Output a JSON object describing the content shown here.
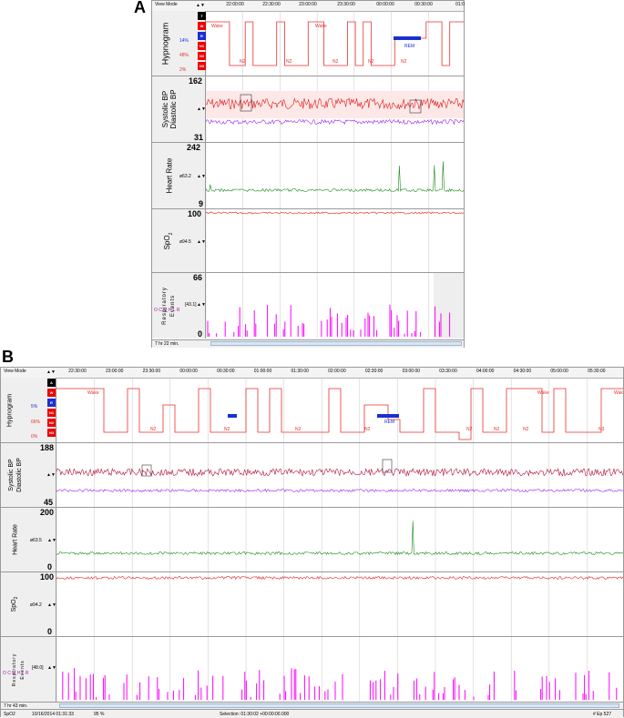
{
  "figure": {
    "label_a": "A",
    "label_b": "B"
  },
  "colors": {
    "hypno": "#e83030",
    "rem": "#1a2fd0",
    "systolic": "#e01818",
    "systolic_b": "#b0103a",
    "diastolic": "#a020f0",
    "hr": "#1a8a1a",
    "spo2": "#e82020",
    "resp": "#ff00ff",
    "grid": "#9a9a9a"
  },
  "panel_a": {
    "view_mode": "View Mode",
    "arrows": "▲▼",
    "times": [
      "22:00:00",
      "22:30:00",
      "23:00:00",
      "23:30:00",
      "00:00:00",
      "00:30:00",
      "01:0"
    ],
    "hypnogram": {
      "title": "Hypnogram",
      "stages": [
        "T",
        "W",
        "R",
        "N1",
        "N2",
        "N3"
      ],
      "pct": [
        "14%",
        "48%",
        "2%"
      ],
      "labels": [
        "Wake",
        "N2",
        "N2",
        "N2",
        "N2",
        "N2",
        "REM",
        "Wake"
      ]
    },
    "bp": {
      "title1": "Systolic BP",
      "title2": "Diastolic BP",
      "max": "162",
      "min": "31",
      "arrows": "▲▼"
    },
    "hr": {
      "title": "Heart Rate",
      "max": "242",
      "min": "9",
      "avg": "ø63.2",
      "arrows": "▲▼"
    },
    "spo2": {
      "title": "SpO",
      "sub": "2",
      "max": "100",
      "avg": "ø94.5",
      "arrows": "▲▼"
    },
    "resp": {
      "title1": "Respiratory",
      "title2": "Events",
      "max": "66",
      "min": "0",
      "legend": "O C M H L R",
      "avg": "[43.1]",
      "arrows": "▲▼"
    },
    "footer": {
      "duration": "7 hr  22 min."
    }
  },
  "panel_b": {
    "view_mode": "View Mode",
    "arrows": "▲▼",
    "times": [
      "22:30:00",
      "23:00:00",
      "23:30:00",
      "00:00:00",
      "00:30:00",
      "01:00:00",
      "01:30:00",
      "02:00:00",
      "02:30:00",
      "03:00:00",
      "03:30:00",
      "04:00:00",
      "04:30:00",
      "05:00:00",
      "05:30:00"
    ],
    "hypnogram": {
      "title": "Hypnogram",
      "stages": [
        "A",
        "W",
        "R",
        "N1",
        "N2",
        "N3"
      ],
      "pct": [
        "5%",
        "66%",
        "0%"
      ],
      "labels": [
        "Wake",
        "N2",
        "N2",
        "N2",
        "N2",
        "N2",
        "REM",
        "N2",
        "N2",
        "N3",
        "Wake",
        "Wake"
      ]
    },
    "bp": {
      "title1": "Systolic BP",
      "title2": "Diastolic BP",
      "max": "188",
      "min": "45",
      "arrows": "▲▼"
    },
    "hr": {
      "title": "Heart Rate",
      "max": "200",
      "min": "0",
      "avg": "ø63.5",
      "arrows": "▲▼"
    },
    "spo2": {
      "title": "SpO",
      "sub": "2",
      "max": "100",
      "min": "0",
      "avg": "ø94.2",
      "arrows": "▲▼"
    },
    "resp": {
      "title1": "Respiratory",
      "title2": "Events",
      "legend": "O C M H L R",
      "avg": "[48.0]",
      "arrows": "▲▼"
    },
    "footer": {
      "duration": "7 hr  43 min."
    },
    "status": {
      "channel": "SpO2",
      "date": "10/16/2014  01:31:33",
      "pct": "95 %",
      "selection": "Selection: 01:30:02  +00:00:00.000",
      "epoch": "# Ep 527"
    }
  }
}
